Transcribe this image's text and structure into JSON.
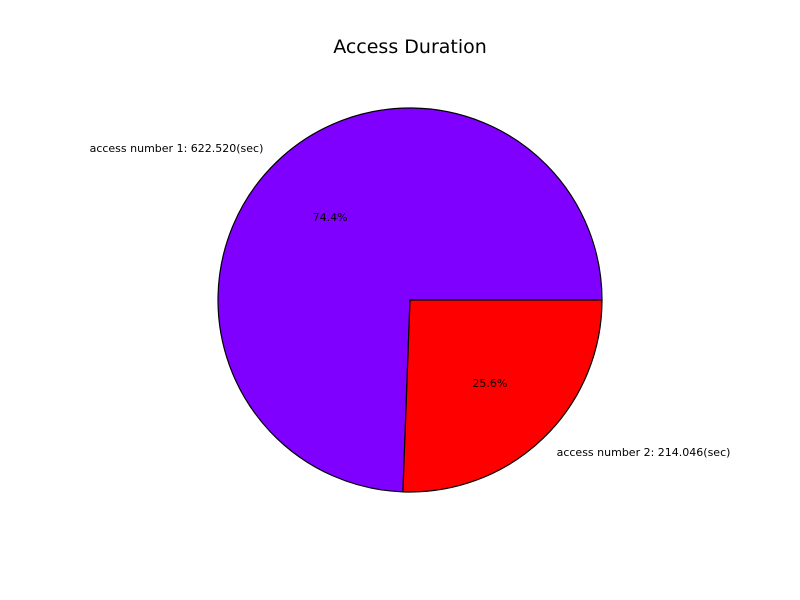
{
  "chart_data": {
    "type": "pie",
    "title": "Access Duration",
    "slices": [
      {
        "label": "access number 1: 622.520(sec)",
        "value": 622.52,
        "percent_label": "74.4%",
        "color": "#7f00ff"
      },
      {
        "label": "access number 2: 214.046(sec)",
        "value": 214.046,
        "percent_label": "25.6%",
        "color": "#ff0000"
      }
    ],
    "start_angle_deg": 0,
    "direction": "counterclockwise",
    "edge_color": "#000000",
    "legend": "none",
    "grid": false
  }
}
